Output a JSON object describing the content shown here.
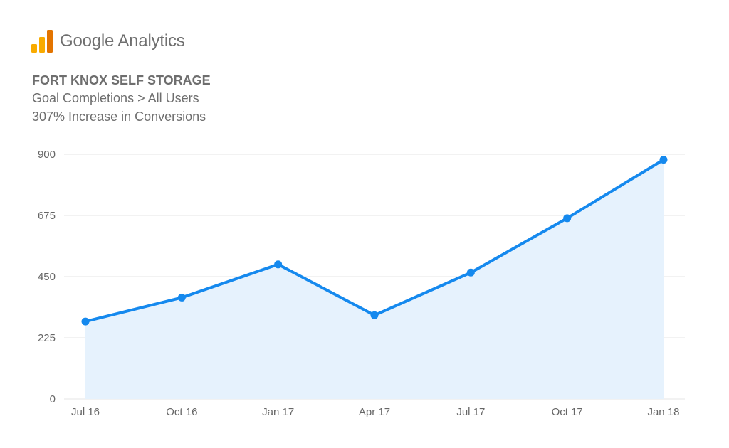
{
  "brand": {
    "name": "Google Analytics",
    "logo_icon": "google-analytics-logo-icon",
    "logo_colors": [
      "#F9AB00",
      "#E37400"
    ]
  },
  "header": {
    "title": "FORT KNOX SELF STORAGE",
    "subtitle_1": "Goal Completions > All Users",
    "subtitle_2": "307% Increase in Conversions"
  },
  "chart_data": {
    "type": "area",
    "categories": [
      "Jul 16",
      "Oct 16",
      "Jan 17",
      "Apr 17",
      "Jul 17",
      "Oct 17",
      "Jan 18"
    ],
    "series": [
      {
        "values": [
          285,
          373,
          495,
          308,
          465,
          665,
          880
        ]
      }
    ],
    "y_ticks": [
      0,
      225,
      450,
      675,
      900
    ],
    "ylim": [
      0,
      900
    ],
    "grid": true,
    "colors": {
      "line": "#1589EE",
      "fill": "#E6F2FD",
      "grid": "#E6E6E6"
    }
  }
}
